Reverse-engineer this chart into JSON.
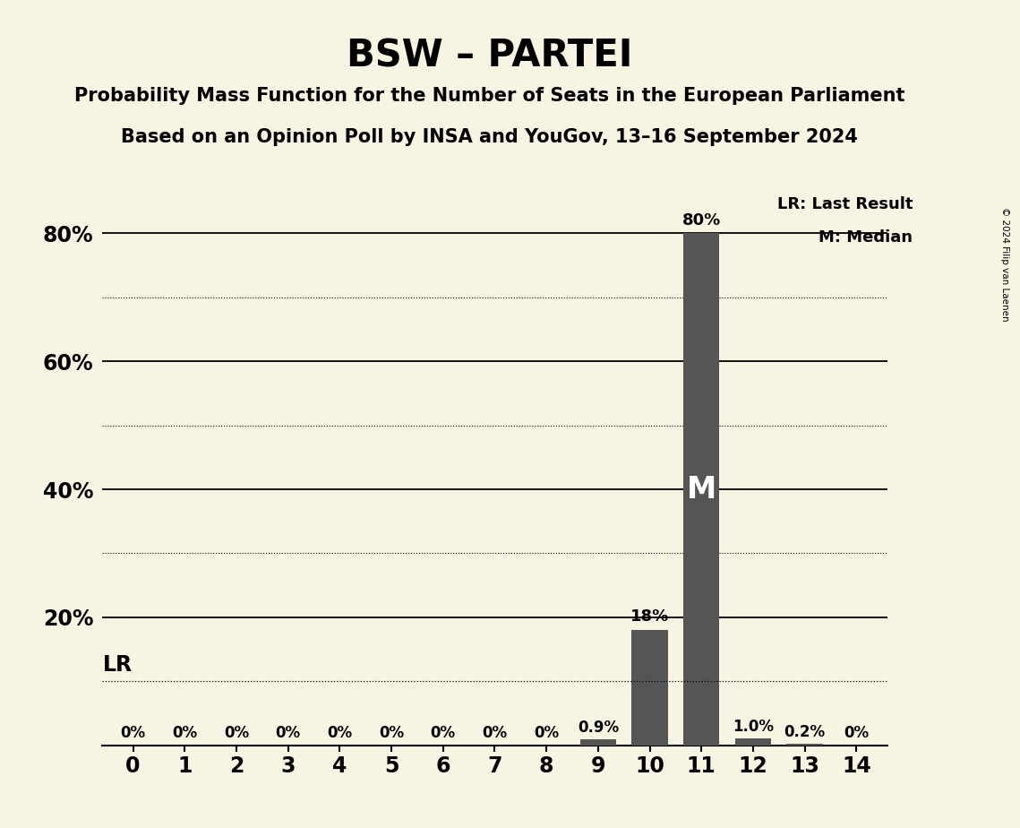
{
  "title": "BSW – PARTEI",
  "subtitle1": "Probability Mass Function for the Number of Seats in the European Parliament",
  "subtitle2": "Based on an Opinion Poll by INSA and YouGov, 13–16 September 2024",
  "copyright": "© 2024 Filip van Laenen",
  "seats": [
    0,
    1,
    2,
    3,
    4,
    5,
    6,
    7,
    8,
    9,
    10,
    11,
    12,
    13,
    14
  ],
  "probabilities": [
    0.0,
    0.0,
    0.0,
    0.0,
    0.0,
    0.0,
    0.0,
    0.0,
    0.0,
    0.9,
    18.0,
    80.0,
    1.0,
    0.2,
    0.0
  ],
  "bar_color": "#555555",
  "background_color": "#f8f4e3",
  "lr_value": 10.0,
  "median_seat": 11,
  "ylim_max": 88,
  "ytick_labeled": [
    20,
    40,
    60,
    80
  ],
  "ytick_solid": [
    20,
    40,
    60,
    80
  ],
  "ytick_dotted": [
    30,
    50,
    70
  ],
  "legend_lr": "LR: Last Result",
  "legend_m": "M: Median",
  "lr_label": "LR",
  "m_label": "M",
  "label_0pct": "0%",
  "bar_labels": {
    "0": "0%",
    "1": "0%",
    "2": "0%",
    "3": "0%",
    "4": "0%",
    "5": "0%",
    "6": "0%",
    "7": "0%",
    "8": "0%",
    "9": "0.9%",
    "10": "18%",
    "11": "80%",
    "12": "1.0%",
    "13": "0.2%",
    "14": "0%"
  }
}
